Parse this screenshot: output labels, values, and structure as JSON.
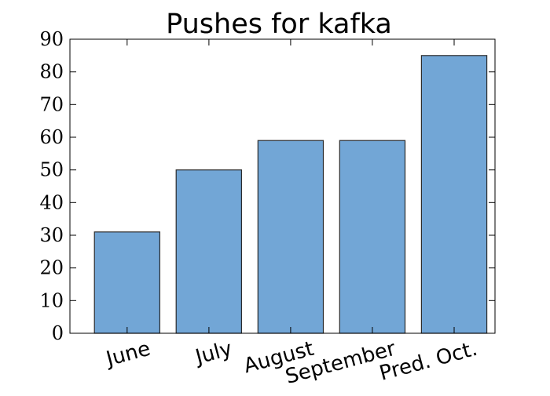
{
  "chart_data": {
    "type": "bar",
    "title": "Pushes for kafka",
    "xlabel": "",
    "ylabel": "",
    "categories": [
      "June",
      "July",
      "August",
      "September",
      "Pred. Oct."
    ],
    "values": [
      31,
      50,
      59,
      59,
      85
    ],
    "ylim": [
      0,
      90
    ],
    "yticks": [
      "0",
      "10",
      "20",
      "30",
      "40",
      "50",
      "60",
      "70",
      "80",
      "90"
    ],
    "grid": false,
    "legend": "none",
    "bar_color": "#72a6d6",
    "bar_edge_color": "#2b2b2b"
  }
}
